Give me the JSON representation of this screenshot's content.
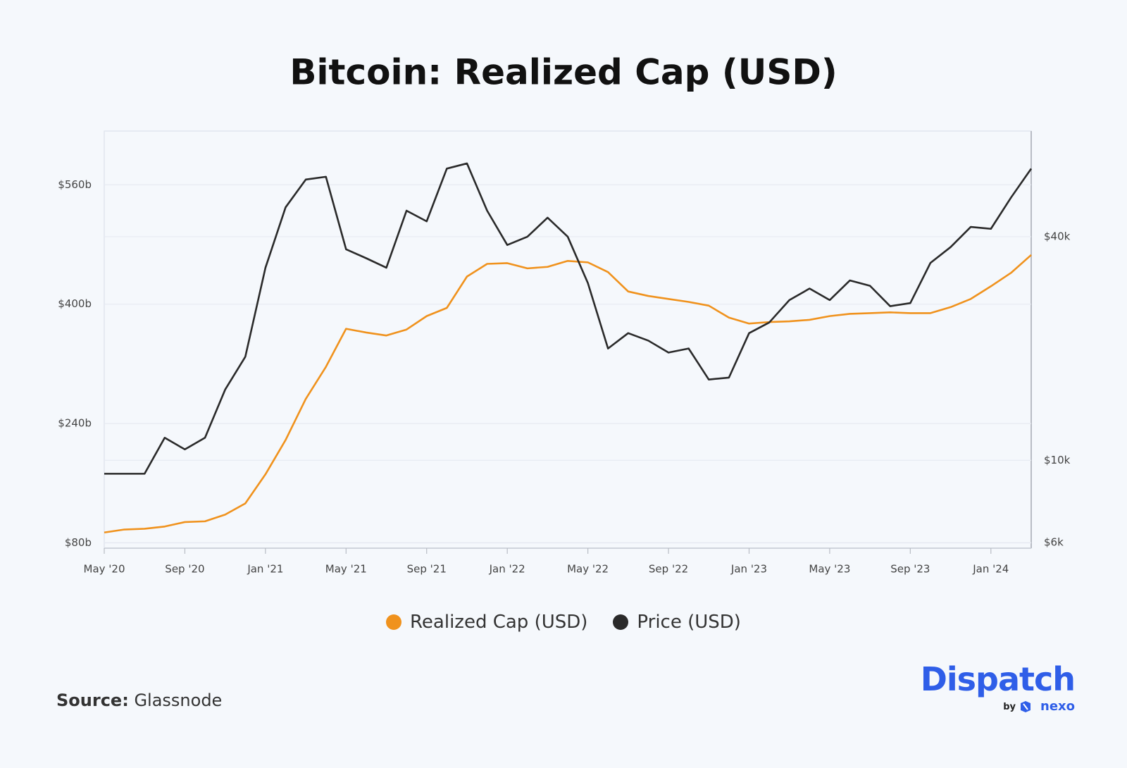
{
  "chart_data": {
    "type": "line",
    "title": "Bitcoin: Realized Cap (USD)",
    "x": [
      "2020-05",
      "2020-06",
      "2020-07",
      "2020-08",
      "2020-09",
      "2020-10",
      "2020-11",
      "2020-12",
      "2021-01",
      "2021-02",
      "2021-03",
      "2021-04",
      "2021-05",
      "2021-06",
      "2021-07",
      "2021-08",
      "2021-09",
      "2021-10",
      "2021-11",
      "2021-12",
      "2022-01",
      "2022-02",
      "2022-03",
      "2022-04",
      "2022-05",
      "2022-06",
      "2022-07",
      "2022-08",
      "2022-09",
      "2022-10",
      "2022-11",
      "2022-12",
      "2023-01",
      "2023-02",
      "2023-03",
      "2023-04",
      "2023-05",
      "2023-06",
      "2023-07",
      "2023-08",
      "2023-09",
      "2023-10",
      "2023-11",
      "2023-12",
      "2024-01",
      "2024-02",
      "2024-03"
    ],
    "xlim": [
      "2020-05",
      "2024-03"
    ],
    "xticks": [
      {
        "value": "2020-05",
        "label": "May '20"
      },
      {
        "value": "2020-09",
        "label": "Sep '20"
      },
      {
        "value": "2021-01",
        "label": "Jan '21"
      },
      {
        "value": "2021-05",
        "label": "May '21"
      },
      {
        "value": "2021-09",
        "label": "Sep '21"
      },
      {
        "value": "2022-01",
        "label": "Jan '22"
      },
      {
        "value": "2022-05",
        "label": "May '22"
      },
      {
        "value": "2022-09",
        "label": "Sep '22"
      },
      {
        "value": "2023-01",
        "label": "Jan '23"
      },
      {
        "value": "2023-05",
        "label": "May '23"
      },
      {
        "value": "2023-09",
        "label": "Sep '23"
      },
      {
        "value": "2024-01",
        "label": "Jan '24"
      }
    ],
    "ylim": [
      73,
      632
    ],
    "yticks": [
      {
        "value": 80,
        "label": "$80b"
      },
      {
        "value": 240,
        "label": "$240b"
      },
      {
        "value": 400,
        "label": "$400b"
      },
      {
        "value": 560,
        "label": "$560b"
      }
    ],
    "y2lim": [
      5800,
      77000
    ],
    "y2_log_scale": true,
    "y2ticks": [
      {
        "value": 6000,
        "label": "$6k"
      },
      {
        "value": 10000,
        "label": "$10k"
      },
      {
        "value": 40000,
        "label": "$40k"
      }
    ],
    "grid": true,
    "series": [
      {
        "name": "Realized Cap (USD)",
        "color": "#f0921d",
        "axis": "y",
        "values": [
          94,
          98,
          99,
          102,
          108,
          109,
          118,
          133,
          172,
          218,
          273,
          316,
          367,
          362,
          358,
          366,
          384,
          395,
          437,
          454,
          455,
          448,
          450,
          458,
          456,
          443,
          417,
          411,
          407,
          403,
          398,
          382,
          374,
          376,
          377,
          379,
          384,
          387,
          388,
          389,
          388,
          388,
          396,
          407,
          424,
          442,
          466
        ]
      },
      {
        "name": "Price (USD)",
        "color": "#2a2a2a",
        "axis": "y2",
        "values": [
          9200,
          9200,
          9200,
          11500,
          10700,
          11500,
          15500,
          19000,
          33000,
          48000,
          57000,
          58000,
          37000,
          35000,
          33000,
          47000,
          44000,
          61000,
          63000,
          47000,
          38000,
          40000,
          45000,
          40000,
          30000,
          20000,
          22000,
          21000,
          19500,
          20000,
          16500,
          16700,
          22000,
          23500,
          27000,
          29000,
          27000,
          30500,
          29500,
          26000,
          26500,
          34000,
          37500,
          42500,
          42000,
          51000,
          61000
        ]
      }
    ]
  },
  "footer": {
    "source_label": "Source:",
    "source": "Glassnode",
    "brand": "Dispatch",
    "by": "by",
    "partner": "nexo"
  }
}
